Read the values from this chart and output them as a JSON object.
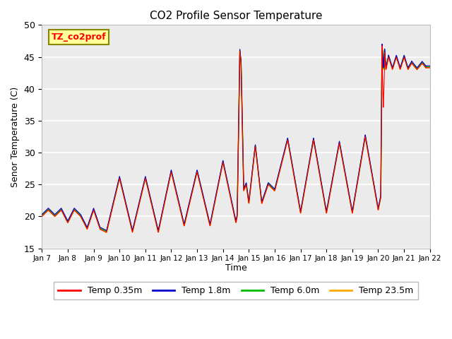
{
  "title": "CO2 Profile Sensor Temperature",
  "ylabel": "Senor Temperature (C)",
  "xlabel": "Time",
  "ylim": [
    15,
    50
  ],
  "annotation": "TZ_co2prof",
  "plot_bg_color": "#ebebeb",
  "grid_color": "white",
  "series_colors": {
    "Temp 0.35m": "#ff0000",
    "Temp 1.8m": "#0000cc",
    "Temp 6.0m": "#00bb00",
    "Temp 23.5m": "#ffaa00"
  },
  "xtick_labels": [
    "Jan 7",
    "Jan 8",
    "Jan 9",
    "Jan 10",
    "Jan 11",
    "Jan 12",
    "Jan 13",
    "Jan 14",
    "Jan 15",
    "Jan 16",
    "Jan 17",
    "Jan 18",
    "Jan 19",
    "Jan 20",
    "Jan 21",
    "Jan 22"
  ],
  "ytick_values": [
    15,
    20,
    25,
    30,
    35,
    40,
    45,
    50
  ],
  "figsize": [
    6.4,
    4.8
  ],
  "dpi": 100
}
